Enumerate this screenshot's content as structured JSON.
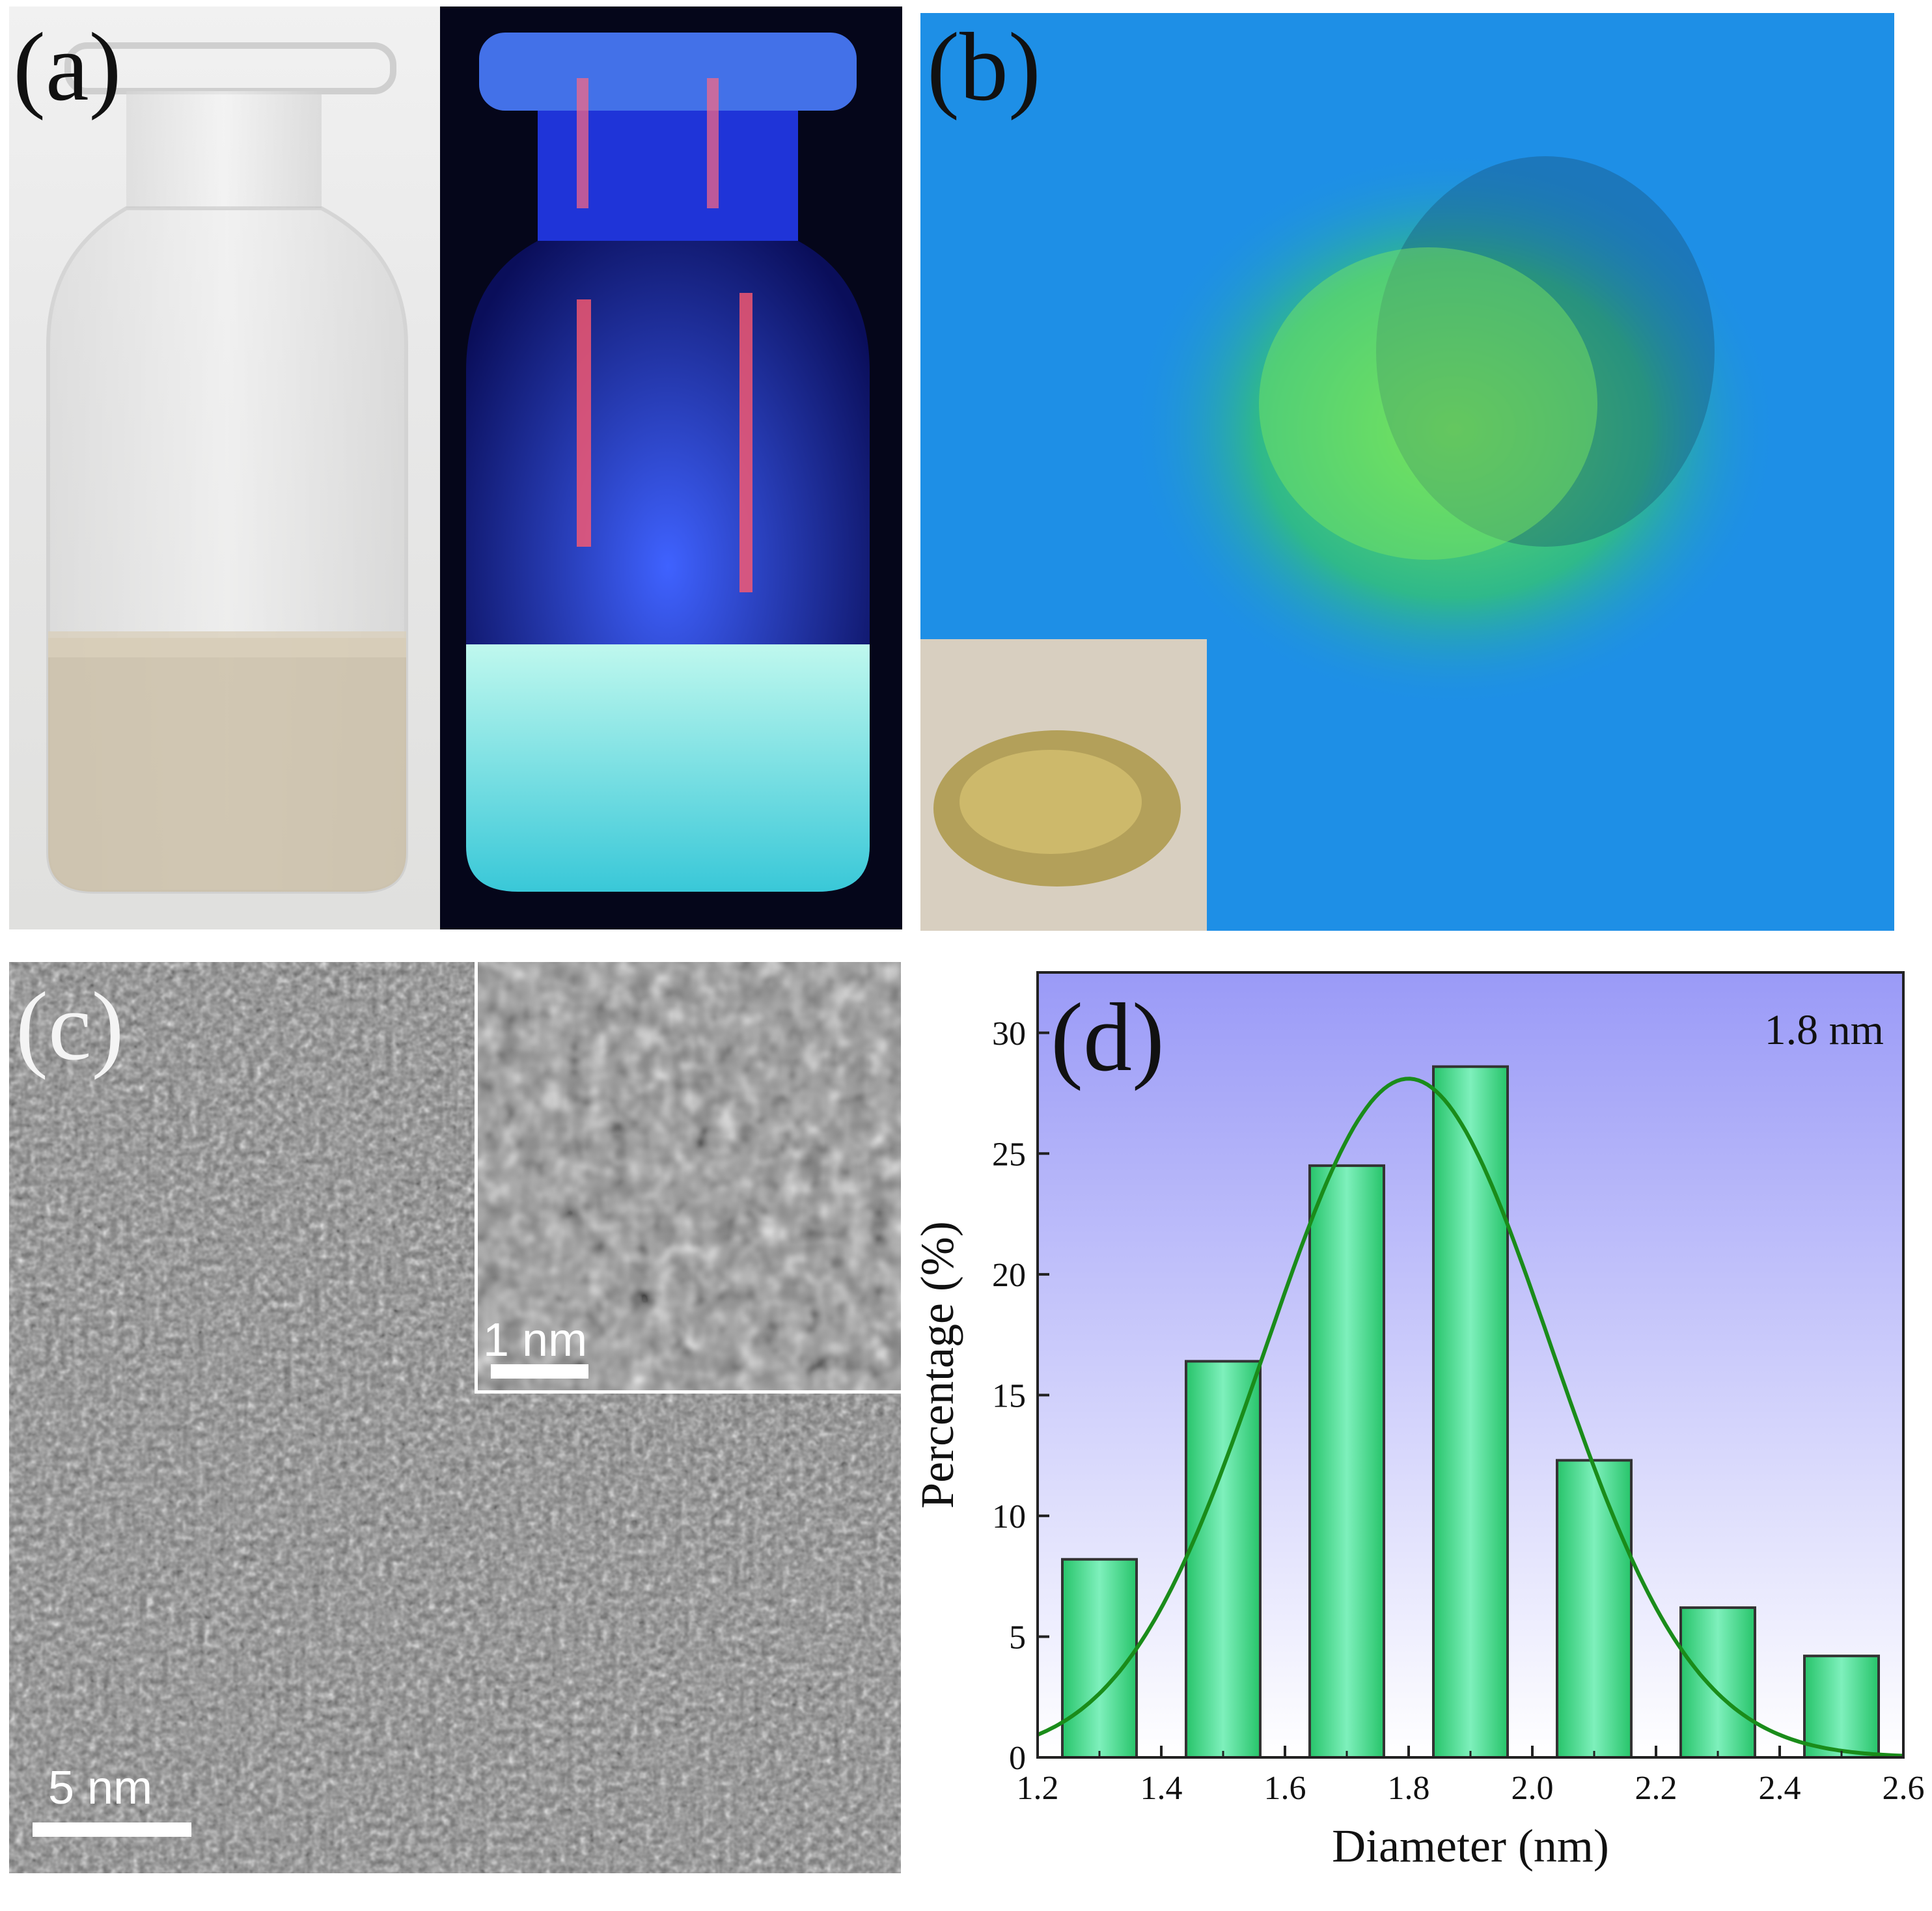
{
  "panels": {
    "a": {
      "label": "(a)"
    },
    "b": {
      "label": "(b)"
    },
    "c": {
      "label": "(c)",
      "scale_main": "5 nm",
      "scale_inset": "1 nm"
    },
    "d": {
      "label": "(d)"
    }
  },
  "chart_data": {
    "type": "bar",
    "title": "",
    "xlabel": "Diameter (nm)",
    "ylabel": "Percentage (%)",
    "annotation": "1.8 nm",
    "xlim": [
      1.2,
      2.6
    ],
    "ylim": [
      0,
      32.5
    ],
    "xticks": [
      "1.2",
      "1.4",
      "1.6",
      "1.8",
      "2.0",
      "2.2",
      "2.4",
      "2.6"
    ],
    "yticks": [
      "0",
      "5",
      "10",
      "15",
      "20",
      "25",
      "30"
    ],
    "bin_centers": [
      1.3,
      1.5,
      1.7,
      1.9,
      2.1,
      2.3,
      2.5
    ],
    "bin_width": 0.12,
    "values": [
      8.2,
      16.4,
      24.5,
      28.6,
      12.3,
      6.2,
      4.2
    ],
    "fit": {
      "type": "gaussian",
      "center": 1.8,
      "amplitude": 28.1,
      "sigma": 0.23,
      "color": "#1a8c1a"
    },
    "bar_fill": "#7ef0bc",
    "background_top": "#9a9af7",
    "background_bottom": "#ffffff"
  }
}
